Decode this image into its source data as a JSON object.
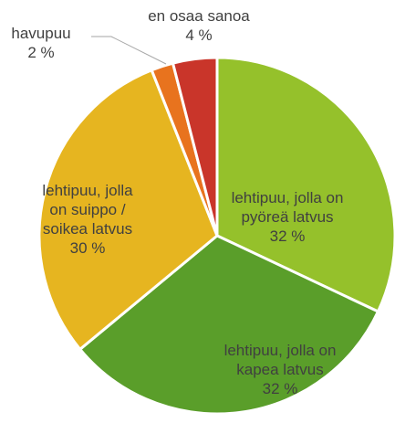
{
  "chart_data": {
    "type": "pie",
    "categories": [
      "lehtipuu, jolla on pyöreä latvus",
      "lehtipuu, jolla on kapea latvus",
      "lehtipuu, jolla on suippo / soikea latvus",
      "havupuu",
      "en osaa sanoa"
    ],
    "values": [
      32,
      32,
      30,
      2,
      4
    ],
    "value_labels": [
      "32 %",
      "32 %",
      "30 %",
      "2 %",
      "4 %"
    ],
    "colors": [
      "#95c12b",
      "#5a9e2a",
      "#e6b520",
      "#e8731e",
      "#c9352a"
    ]
  }
}
